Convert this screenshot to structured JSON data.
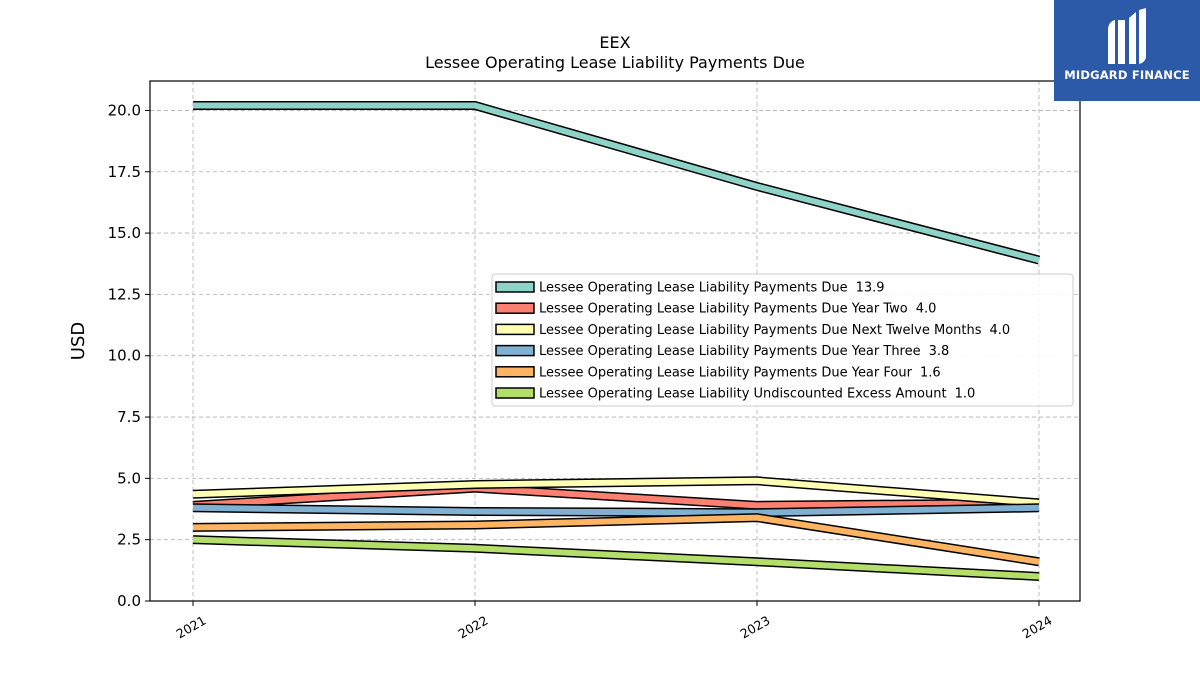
{
  "brand": {
    "name": "MIDGARD FINANCE",
    "bg": "#2d5aa8"
  },
  "chart_data": {
    "type": "line",
    "title": "EEX",
    "subtitle": "Lessee Operating Lease Liability Payments Due",
    "xlabel": "",
    "ylabel": "USD",
    "x": [
      "2021",
      "2022",
      "2023",
      "2024"
    ],
    "ylim": [
      0,
      21.2
    ],
    "yticks": [
      "0.0",
      "2.5",
      "5.0",
      "7.5",
      "10.0",
      "12.5",
      "15.0",
      "17.5",
      "20.0"
    ],
    "grid": true,
    "legend_position": "center-right",
    "series": [
      {
        "name": "Lessee Operating Lease Liability Payments Due",
        "last_label": "13.9",
        "color": "#8dd3c7",
        "values": [
          20.2,
          20.2,
          16.9,
          13.9
        ]
      },
      {
        "name": "Lessee Operating Lease Liability Payments Due Year Two",
        "last_label": "4.0",
        "color": "#fb8072",
        "values": [
          3.9,
          4.6,
          3.9,
          4.0
        ]
      },
      {
        "name": "Lessee Operating Lease Liability Payments Due Next Twelve Months",
        "last_label": "4.0",
        "color": "#ffffb3",
        "values": [
          4.35,
          4.75,
          4.9,
          4.0
        ]
      },
      {
        "name": "Lessee Operating Lease Liability Payments Due Year Three",
        "last_label": "3.8",
        "color": "#80b1d3",
        "values": [
          3.8,
          3.65,
          3.6,
          3.8
        ]
      },
      {
        "name": "Lessee Operating Lease Liability Payments Due Year Four",
        "last_label": "1.6",
        "color": "#fdb462",
        "values": [
          3.0,
          3.1,
          3.4,
          1.6
        ]
      },
      {
        "name": "Lessee Operating Lease Liability Undiscounted Excess Amount",
        "last_label": "1.0",
        "color": "#b3de69",
        "values": [
          2.5,
          2.15,
          1.6,
          1.0
        ]
      }
    ]
  }
}
